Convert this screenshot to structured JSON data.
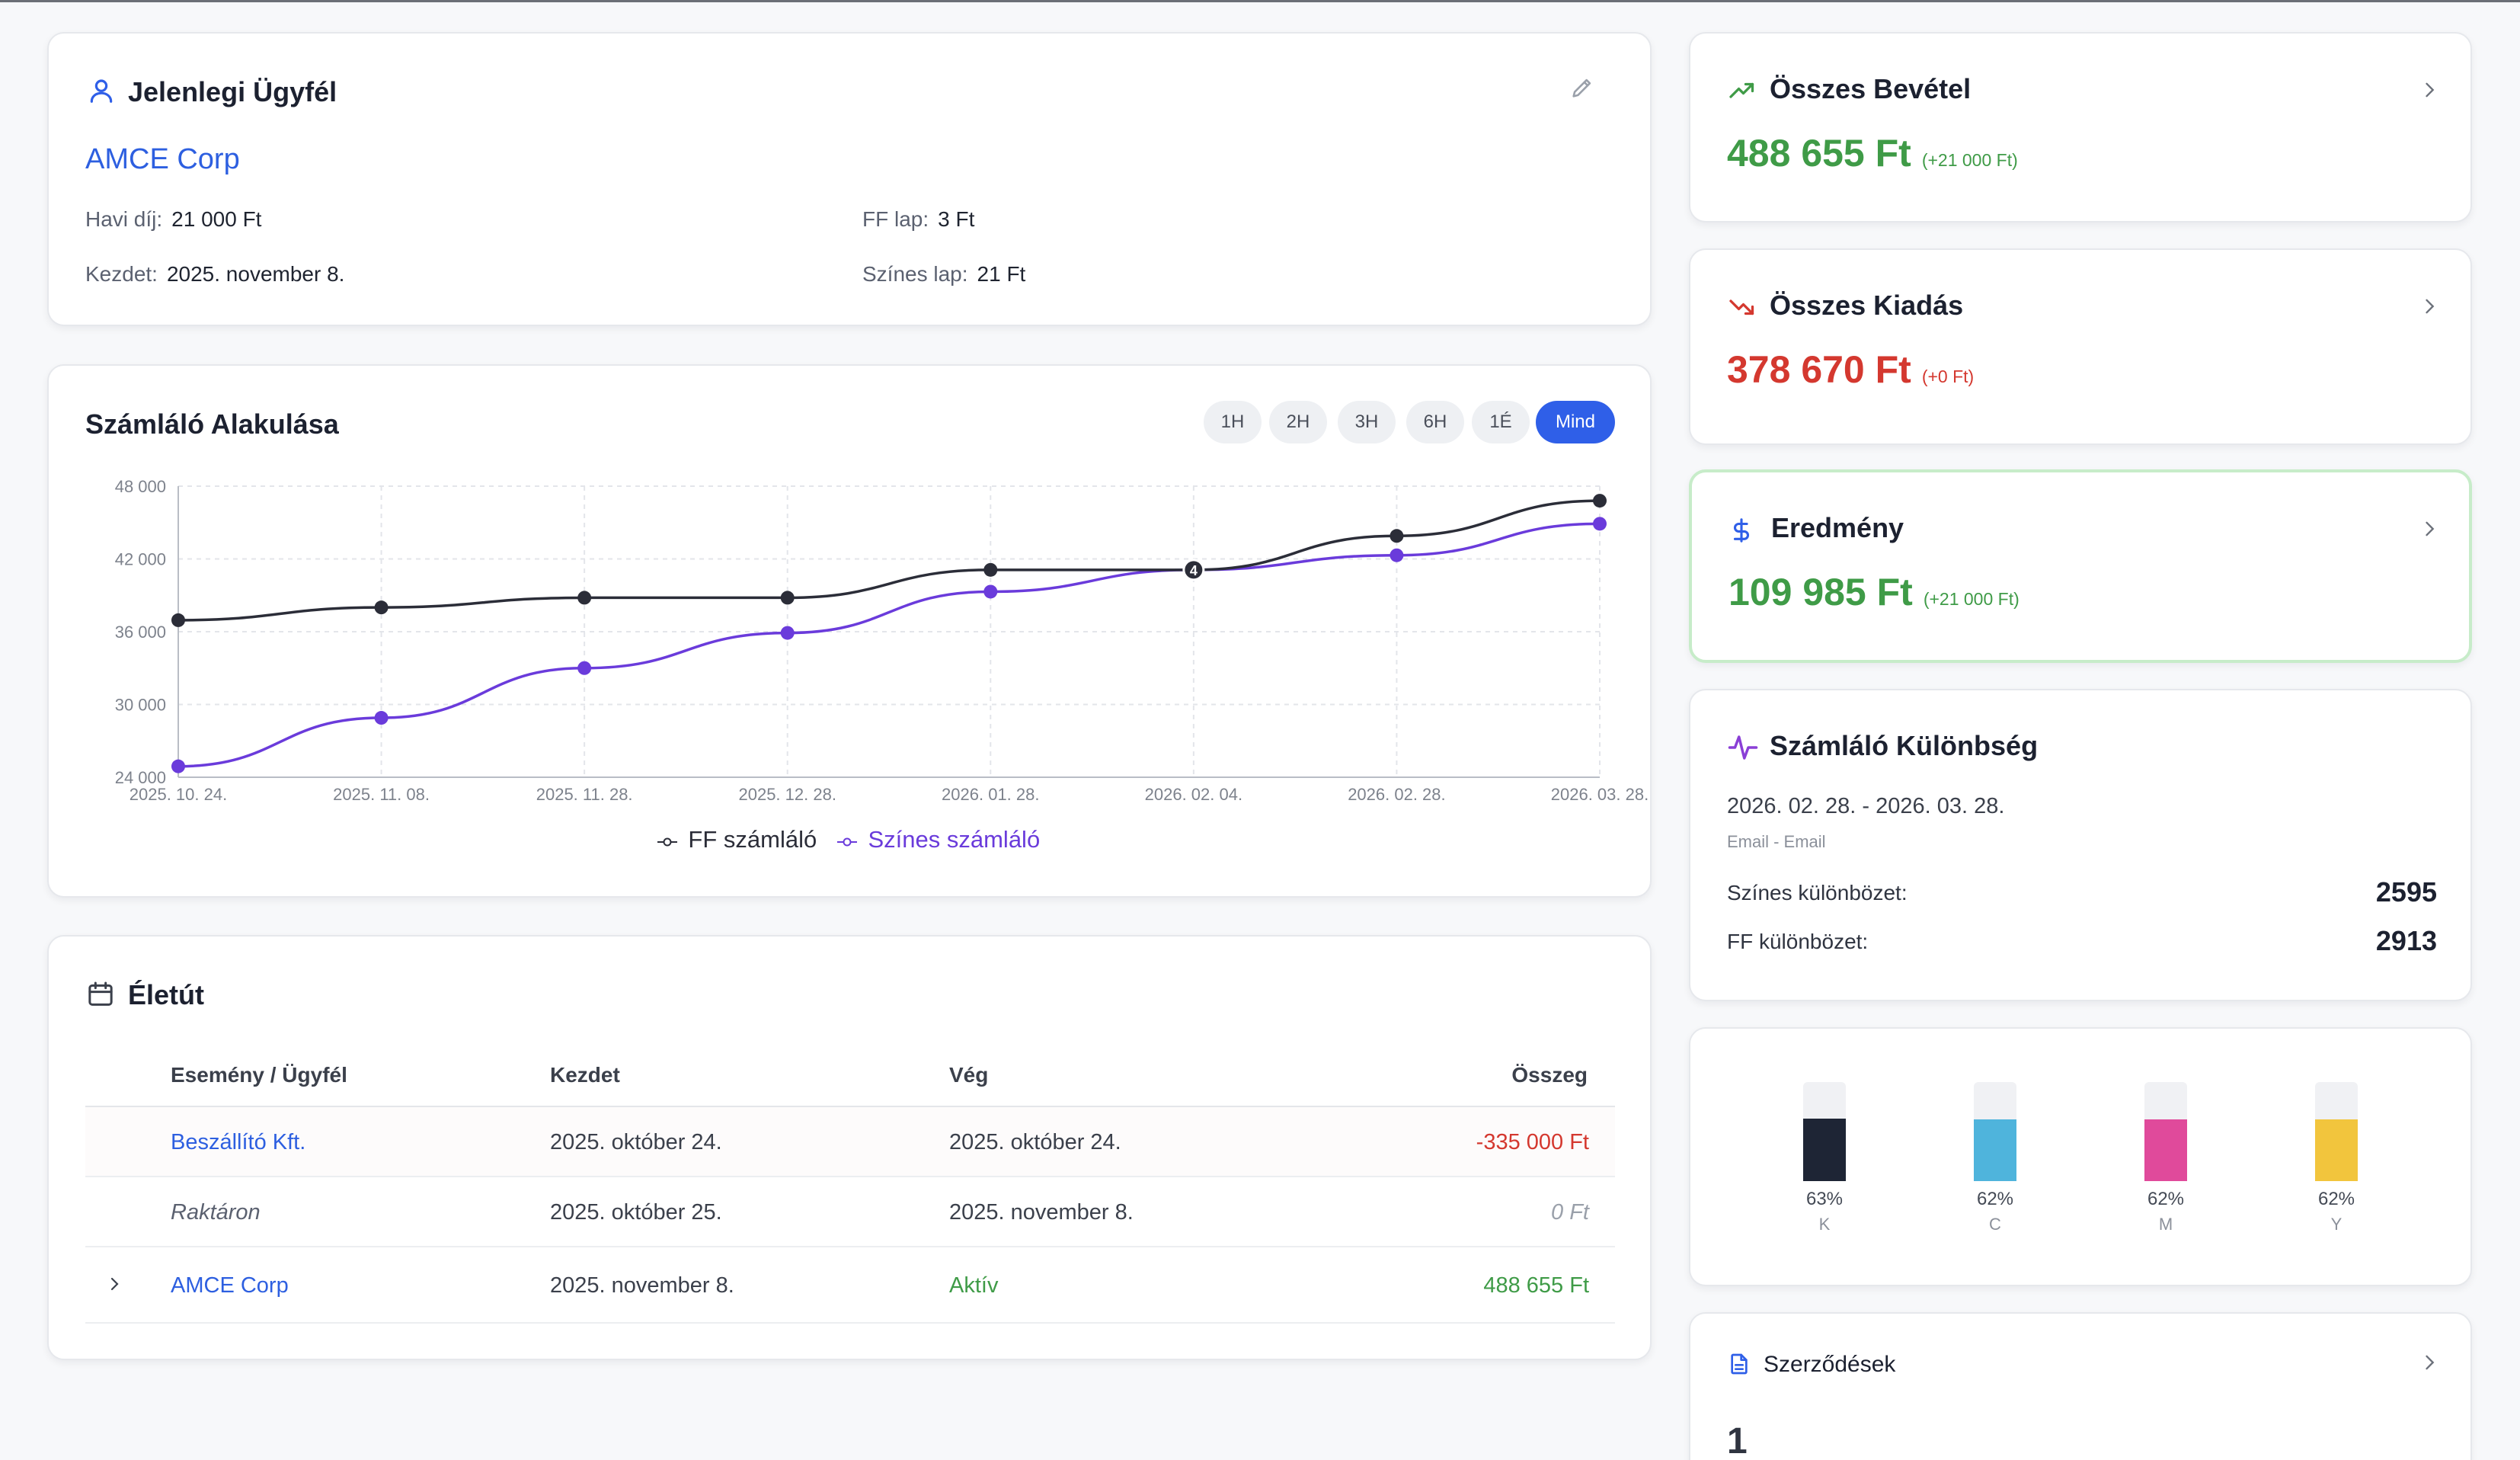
{
  "client": {
    "title": "Jelenlegi Ügyfél",
    "name": "AMCE Corp",
    "monthly_fee_label": "Havi díj:",
    "monthly_fee": "21 000 Ft",
    "bw_page_label": "FF lap:",
    "bw_page": "3 Ft",
    "start_label": "Kezdet:",
    "start": "2025. november 8.",
    "color_page_label": "Színes lap:",
    "color_page": "21 Ft"
  },
  "chart": {
    "title": "Számláló Alakulása",
    "ranges": [
      "1H",
      "2H",
      "3H",
      "6H",
      "1É",
      "Mind"
    ],
    "active_range": "Mind",
    "legend_ff": "FF számláló",
    "legend_color": "Színes számláló",
    "colors": {
      "ff": "#2b2d38",
      "color": "#6a3bdb"
    }
  },
  "chart_data": {
    "type": "line",
    "categories": [
      "2025. 10. 24.",
      "2025. 11. 08.",
      "2025. 11. 28.",
      "2025. 12. 28.",
      "2026. 01. 28.",
      "2026. 02. 04.",
      "2026. 02. 28.",
      "2026. 03. 28."
    ],
    "yticks": [
      "24 000",
      "30 000",
      "36 000",
      "42 000",
      "48 000"
    ],
    "ylim": [
      24000,
      48000
    ],
    "grid": true,
    "legend": "bottom",
    "series": [
      {
        "name": "FF számláló",
        "values": [
          36950,
          38000,
          38800,
          38800,
          41100,
          41100,
          43900,
          46800
        ]
      },
      {
        "name": "Színes számláló",
        "values": [
          24900,
          28900,
          33000,
          35900,
          39300,
          41100,
          42300,
          44900
        ]
      }
    ],
    "marker_label": "4"
  },
  "timeline": {
    "title": "Életút",
    "headers": [
      "Esemény / Ügyfél",
      "Kezdet",
      "Vég",
      "Összeg"
    ],
    "rows": [
      {
        "name": "Beszállító Kft.",
        "start": "2025. október 24.",
        "end": "2025. október 24.",
        "amount": "-335 000 Ft"
      },
      {
        "name": "Raktáron",
        "start": "2025. október 25.",
        "end": "2025. november 8.",
        "amount": "0 Ft"
      },
      {
        "name": "AMCE Corp",
        "start": "2025. november 8.",
        "end": "Aktív",
        "amount": "488 655 Ft"
      }
    ]
  },
  "income": {
    "title": "Összes Bevétel",
    "value": "488 655 Ft",
    "delta": "(+21 000 Ft)"
  },
  "expense": {
    "title": "Összes Kiadás",
    "value": "378 670 Ft",
    "delta": "(+0 Ft)"
  },
  "result": {
    "title": "Eredmény",
    "value": "109 985 Ft",
    "delta": "(+21 000 Ft)"
  },
  "counter_diff": {
    "title": "Számláló Különbség",
    "period": "2026. 02. 28. - 2026. 03. 28.",
    "source": "Email - Email",
    "color_label": "Színes különbözet:",
    "color_value": "2595",
    "ff_label": "FF különbözet:",
    "ff_value": "2913"
  },
  "inks": [
    {
      "name": "K",
      "percent": "63%",
      "level": 0.63,
      "color": "#1e2535"
    },
    {
      "name": "C",
      "percent": "62%",
      "level": 0.62,
      "color": "#4fb4dc"
    },
    {
      "name": "M",
      "percent": "62%",
      "level": 0.62,
      "color": "#e04a9b"
    },
    {
      "name": "Y",
      "percent": "62%",
      "level": 0.62,
      "color": "#f2c53d"
    }
  ],
  "contracts": {
    "title": "Szerződések",
    "count": "1"
  },
  "colors": {
    "accent": "#2f5fe8",
    "positive": "#3f9b47",
    "negative": "#d4382f",
    "link": "#2d5fe0"
  }
}
